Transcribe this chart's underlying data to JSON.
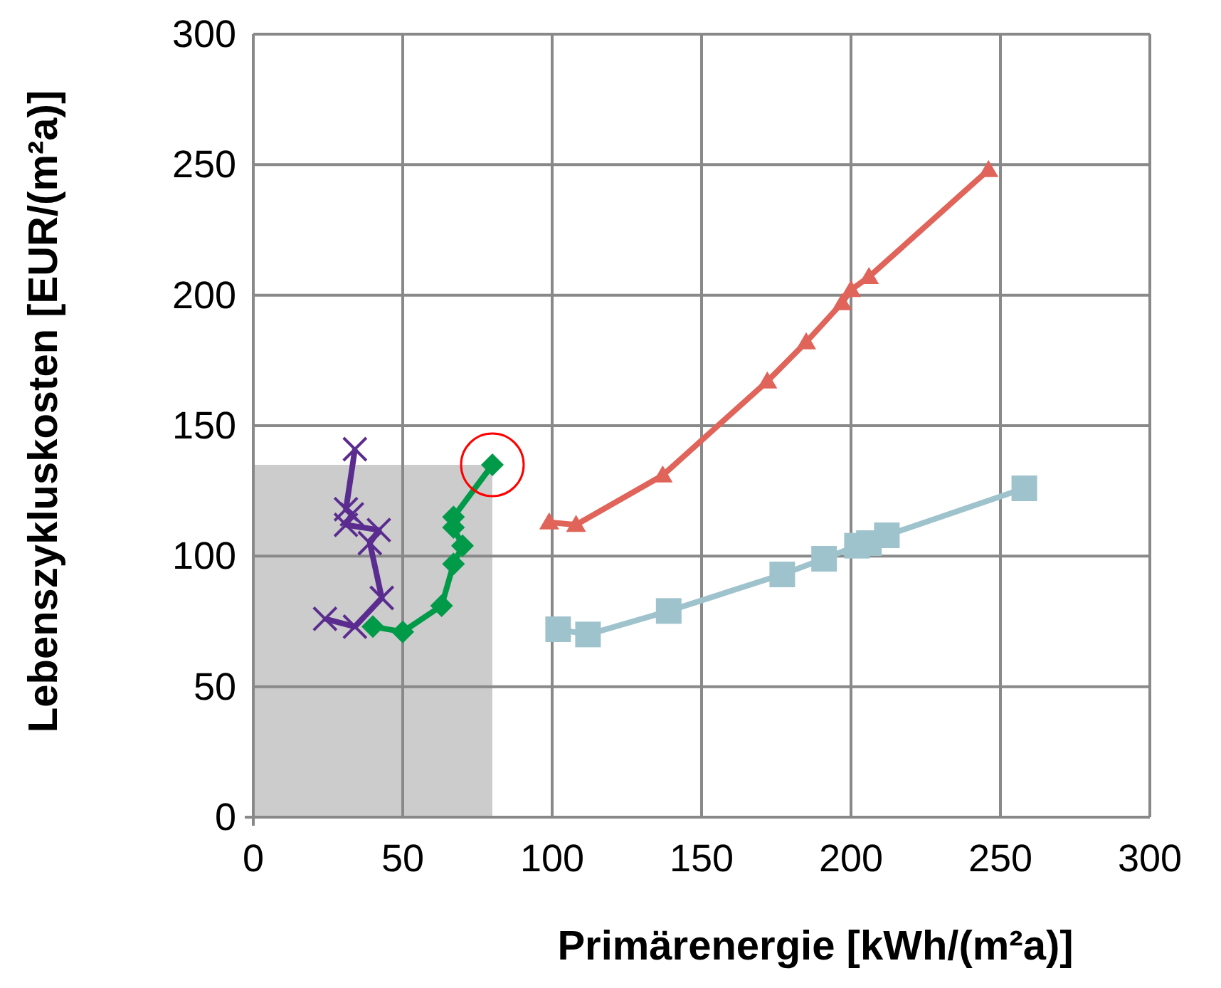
{
  "chart_data": {
    "type": "line",
    "xlabel": "Primärenergie [kWh/(m²a)]",
    "ylabel": "Lebenszykluskosten [EUR/(m²a)]",
    "xlim": [
      0,
      300
    ],
    "ylim": [
      0,
      300
    ],
    "xticks": [
      0,
      50,
      100,
      150,
      200,
      250,
      300
    ],
    "yticks": [
      0,
      50,
      100,
      150,
      200,
      250,
      300
    ],
    "grid": true,
    "line_style": "solid",
    "series": [
      {
        "type": "area",
        "color": "#cccccc",
        "x": [
          0,
          80
        ],
        "values": [
          135,
          135
        ]
      },
      {
        "color": "#e0645a",
        "marker": "triangle",
        "x": [
          99,
          108,
          137,
          172,
          185,
          197,
          200,
          206,
          246
        ],
        "values": [
          113,
          112,
          131,
          167,
          182,
          197,
          202,
          207,
          248
        ]
      },
      {
        "color": "#9fc3cc",
        "marker": "square",
        "x": [
          102,
          112,
          139,
          177,
          191,
          202,
          206,
          212,
          258
        ],
        "values": [
          72,
          70,
          79,
          93,
          99,
          104,
          105,
          108,
          126
        ]
      },
      {
        "color": "#009a49",
        "marker": "diamond",
        "x": [
          40,
          50,
          63,
          67,
          70,
          67,
          67,
          80
        ],
        "values": [
          73,
          71,
          81,
          97,
          104,
          111,
          115,
          135
        ]
      },
      {
        "color": "#5b2c8f",
        "marker": "cross",
        "x": [
          24,
          34,
          43,
          39,
          42,
          31,
          33,
          31,
          34
        ],
        "values": [
          76,
          73,
          84,
          105,
          110,
          112,
          116,
          118,
          141
        ]
      }
    ]
  }
}
